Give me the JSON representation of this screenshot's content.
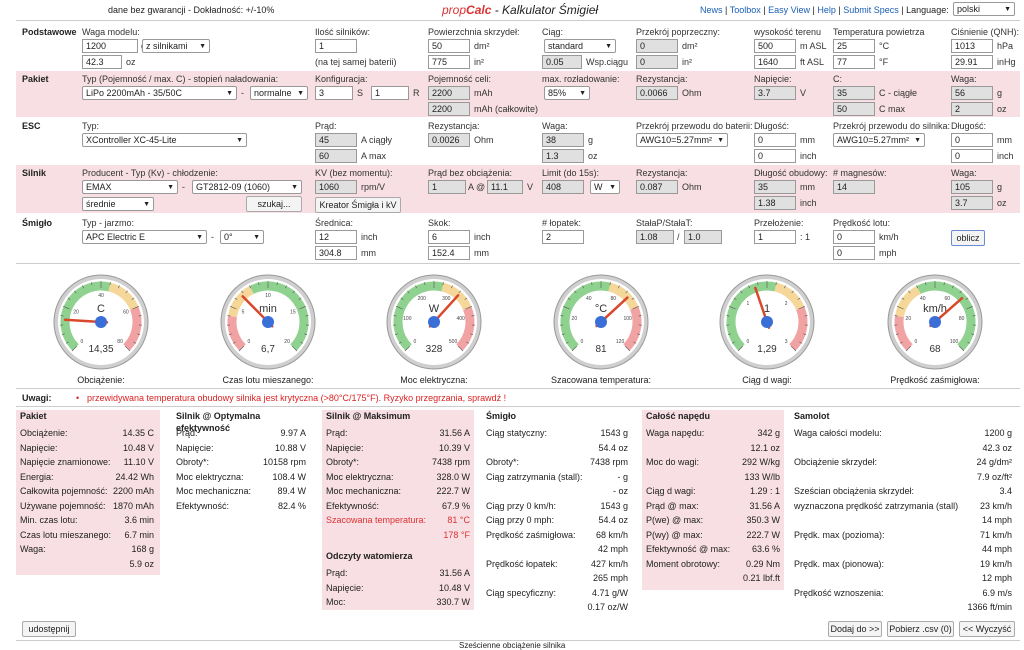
{
  "header": {
    "warranty": "dane bez gwarancji - Dokładność: +/-10%",
    "brand1": "prop",
    "brand2": "Calc",
    "title_rest": " - Kalkulator Śmigieł",
    "links": [
      "News",
      "Toolbox",
      "Easy View",
      "Help",
      "Submit Specs"
    ],
    "sep": "|",
    "lang_label": "Language:",
    "lang_value": "polski"
  },
  "basic": {
    "name": "Podstawowe",
    "weight_label": "Waga modelu:",
    "weight_g": "1200",
    "weight_g_unit": "g",
    "weight_mode": "z silnikami",
    "weight_oz": "42.3",
    "weight_oz_unit": "oz",
    "motors_label": "Ilość silników:",
    "motors": "1",
    "motors_note": "(na tej samej baterii)",
    "wing_label": "Powierzchnia skrzydeł:",
    "wing_dm": "50",
    "wing_dm_unit": "dm²",
    "wing_in": "775",
    "wing_in_unit": "in²",
    "drag_label": "Ciąg:",
    "drag_mode": "standard",
    "drag_coef": "0.05",
    "drag_coef_unit": "Wsp.ciągu",
    "cross_label": "Przekrój poprzeczny:",
    "cross_dm": "0",
    "cross_dm_unit": "dm²",
    "cross_in": "0",
    "cross_in_unit": "in²",
    "alt_label": "wysokość terenu",
    "alt_m": "500",
    "alt_m_unit": "m ASL",
    "alt_ft": "1640",
    "alt_ft_unit": "ft ASL",
    "temp_label": "Temperatura powietrza",
    "temp_c": "25",
    "temp_c_unit": "°C",
    "temp_f": "77",
    "temp_f_unit": "°F",
    "press_label": "Ciśnienie (QNH):",
    "press_hpa": "1013",
    "press_hpa_unit": "hPa",
    "press_inhg": "29.91",
    "press_inhg_unit": "inHg"
  },
  "battery": {
    "name": "Pakiet",
    "type_label": "Typ (Pojemność / max. C) - stopień naładowania:",
    "type": "LiPo 2200mAh - 35/50C",
    "dash": "-",
    "charge": "normalne",
    "config_label": "Konfiguracja:",
    "s": "3",
    "s_unit": "S",
    "p": "1",
    "p_unit": "R",
    "cell_label": "Pojemność celi:",
    "cell_cap": "2200",
    "cell_cap_unit": "mAh",
    "total_cap": "2200",
    "total_cap_unit": "mAh (całkowite)",
    "disch_label": "max. rozładowanie:",
    "disch": "85%",
    "res_label": "Rezystancja:",
    "res": "0.0066",
    "res_unit": "Ohm",
    "volt_label": "Napięcie:",
    "volt": "3.7",
    "volt_unit": "V",
    "c_label": "C:",
    "c_cont": "35",
    "c_cont_unit": "C - ciągłe",
    "c_max": "50",
    "c_max_unit": "C max",
    "w_label": "Waga:",
    "w_g": "56",
    "w_g_unit": "g",
    "w_oz": "2",
    "w_oz_unit": "oz"
  },
  "esc": {
    "name": "ESC",
    "type_label": "Typ:",
    "type": "XController XC-45-Lite",
    "cur_label": "Prąd:",
    "cur_cont": "45",
    "cur_cont_unit": "A ciągły",
    "cur_max": "60",
    "cur_max_unit": "A max",
    "res_label": "Rezystancja:",
    "res": "0.0026",
    "res_unit": "Ohm",
    "w_label": "Waga:",
    "w_g": "38",
    "w_g_unit": "g",
    "w_oz": "1.3",
    "w_oz_unit": "oz",
    "bwire_label": "Przekrój przewodu do baterii:",
    "bwire": "AWG10=5.27mm²",
    "len_label": "Długość:",
    "len_mm": "0",
    "len_mm_unit": "mm",
    "len_in": "0",
    "len_in_unit": "inch",
    "mwire_label": "Przekrój przewodu do silnika:",
    "mwire": "AWG10=5.27mm²",
    "len2_label": "Długość:",
    "len2_mm": "0",
    "len2_mm_unit": "mm",
    "len2_in": "0",
    "len2_in_unit": "inch"
  },
  "motor": {
    "name": "Silnik",
    "maker_label": "Producent - Typ (Kv) - chłodzenie:",
    "maker": "EMAX",
    "dash": "-",
    "model": "GT2812-09 (1060)",
    "cooling": "średnie",
    "search": "szukaj...",
    "kv_label": "KV (bez momentu):",
    "kv": "1060",
    "kv_unit": "rpm/V",
    "wizard": "Kreator Śmigła i kV",
    "i0_label": "Prąd bez obciążenia:",
    "i0": "1",
    "i0_at": "A @",
    "i0_v": "11.1",
    "i0_v_unit": "V",
    "limit_label": "Limit (do 15s):",
    "limit": "408",
    "limit_unit": "W",
    "res_label": "Rezystancja:",
    "res": "0.087",
    "res_unit": "Ohm",
    "case_label": "Długość obudowy:",
    "case_mm": "35",
    "case_mm_unit": "mm",
    "case_in": "1.38",
    "case_in_unit": "inch",
    "mag_label": "# magnesów:",
    "mag": "14",
    "w_label": "Waga:",
    "w_g": "105",
    "w_g_unit": "g",
    "w_oz": "3.7",
    "w_oz_unit": "oz"
  },
  "prop": {
    "name": "Śmigło",
    "type_label": "Typ - jarzmo:",
    "type": "APC Electric E",
    "dash": "-",
    "yoke": "0°",
    "dia_label": "Średnica:",
    "dia_in": "12",
    "dia_in_unit": "inch",
    "dia_mm": "304.8",
    "dia_mm_unit": "mm",
    "pitch_label": "Skok:",
    "pitch_in": "6",
    "pitch_in_unit": "inch",
    "pitch_mm": "152.4",
    "pitch_mm_unit": "mm",
    "blades_label": "# łopatek:",
    "blades": "2",
    "const_label": "StałaP/StałaT:",
    "const_p": "1.08",
    "const_slash": "/",
    "const_t": "1.0",
    "gear_label": "Przełożenie:",
    "gear": "1",
    "gear_unit": ": 1",
    "speed_label": "Prędkość lotu:",
    "speed_kmh": "0",
    "speed_kmh_unit": "km/h",
    "speed_mph": "0",
    "speed_mph_unit": "mph",
    "calc": "oblicz"
  },
  "gauges": [
    {
      "caption": "Obciążenie:",
      "unit": "C",
      "value": "14,35",
      "ticks": [
        "0",
        "20",
        "40",
        "60",
        "80"
      ],
      "level": 0.18
    },
    {
      "caption": "Czas lotu mieszanego:",
      "unit": "min",
      "value": "6,7",
      "ticks": [
        "0",
        "5",
        "10",
        "15",
        "20"
      ],
      "level": 0.335
    },
    {
      "caption": "Moc elektryczna:",
      "unit": "W",
      "value": "328",
      "ticks": [
        "0",
        "100",
        "200",
        "300",
        "400",
        "500"
      ],
      "level": 0.656
    },
    {
      "caption": "Szacowana temperatura:",
      "unit": "°C",
      "value": "81",
      "ticks": [
        "0",
        "20",
        "40",
        "80",
        "100",
        "120"
      ],
      "level": 0.675
    },
    {
      "caption": "Ciąg d wagi:",
      "unit": "1",
      "value": "1,29",
      "ticks": [
        "0",
        "1",
        "2",
        "3"
      ],
      "level": 0.43
    },
    {
      "caption": "Prędkość zaśmigłowa:",
      "unit": "km/h",
      "value": "68",
      "ticks": [
        "0",
        "20",
        "40",
        "60",
        "80",
        "100"
      ],
      "level": 0.68
    }
  ],
  "notes": {
    "label": "Uwagi:",
    "bullet": "•",
    "text": "przewidywana temperatura obudowy silnika jest krytyczna (>80°C/175°F). Ryzyko przegrzania, sprawdź !"
  },
  "results": {
    "pakiet": {
      "title": "Pakiet",
      "rows": [
        [
          "Obciążenie:",
          "14.35 C"
        ],
        [
          "Napięcie:",
          "10.48 V"
        ],
        [
          "Napięcie znamionowe:",
          "11.10 V"
        ],
        [
          "Energia:",
          "24.42 Wh"
        ],
        [
          "Całkowita pojemność:",
          "2200 mAh"
        ],
        [
          "Używane pojemność:",
          "1870 mAh"
        ],
        [
          "Min. czas lotu:",
          "3.6 min"
        ],
        [
          "Czas lotu mieszanego:",
          "6.7 min"
        ],
        [
          "Waga:",
          "168 g"
        ],
        [
          "",
          "5.9 oz"
        ]
      ]
    },
    "opt": {
      "title": "Silnik @ Optymalna efektywność",
      "rows": [
        [
          "Prąd:",
          "9.97 A"
        ],
        [
          "Napięcie:",
          "10.88 V"
        ],
        [
          "Obroty*:",
          "10158 rpm"
        ],
        [
          "Moc elektryczna:",
          "108.4 W"
        ],
        [
          "Moc mechaniczna:",
          "89.4 W"
        ],
        [
          "Efektywność:",
          "82.4 %"
        ]
      ]
    },
    "max": {
      "title": "Silnik @ Maksimum",
      "rows": [
        [
          "Prąd:",
          "31.56 A"
        ],
        [
          "Napięcie:",
          "10.39 V"
        ],
        [
          "Obroty*:",
          "7438 rpm"
        ],
        [
          "Moc elektryczna:",
          "328.0 W"
        ],
        [
          "Moc mechaniczna:",
          "222.7 W"
        ],
        [
          "Efektywność:",
          "67.9 %"
        ],
        [
          "Szacowana temperatura:",
          "81 °C"
        ],
        [
          "",
          "178 °F"
        ]
      ],
      "watt_title": "Odczyty watomierza",
      "watt_rows": [
        [
          "Prąd:",
          "31.56 A"
        ],
        [
          "Napięcie:",
          "10.48 V"
        ],
        [
          "Moc:",
          "330.7 W"
        ]
      ]
    },
    "prop": {
      "title": "Śmigło",
      "rows": [
        [
          "Ciąg statyczny:",
          "1543 g"
        ],
        [
          "",
          "54.4 oz"
        ],
        [
          "Obroty*:",
          "7438 rpm"
        ],
        [
          "Ciąg zatrzymania (stall):",
          "- g"
        ],
        [
          "",
          "- oz"
        ],
        [
          "Ciąg przy 0 km/h:",
          "1543 g"
        ],
        [
          "Ciąg przy 0 mph:",
          "54.4 oz"
        ],
        [
          "Prędkość zaśmigłowa:",
          "68 km/h"
        ],
        [
          "",
          "42 mph"
        ],
        [
          "Prędkość łopatek:",
          "427 km/h"
        ],
        [
          "",
          "265 mph"
        ],
        [
          "Ciąg specyficzny:",
          "4.71 g/W"
        ],
        [
          "",
          "0.17 oz/W"
        ]
      ]
    },
    "drive": {
      "title": "Całość napędu",
      "rows": [
        [
          "Waga napędu:",
          "342 g"
        ],
        [
          "",
          "12.1 oz"
        ],
        [
          "Moc do wagi:",
          "292 W/kg"
        ],
        [
          "",
          "133 W/lb"
        ],
        [
          "Ciąg d wagi:",
          "1.29 : 1"
        ],
        [
          "Prąd @ max:",
          "31.56 A"
        ],
        [
          "P(we) @ max:",
          "350.3 W"
        ],
        [
          "P(wy) @ max:",
          "222.7 W"
        ],
        [
          "Efektywność @ max:",
          "63.6 %"
        ],
        [
          "Moment obrotowy:",
          "0.29 Nm"
        ],
        [
          "",
          "0.21 lbf.ft"
        ]
      ]
    },
    "plane": {
      "title": "Samolot",
      "rows": [
        [
          "Waga całości modelu:",
          "1200 g"
        ],
        [
          "",
          "42.3 oz"
        ],
        [
          "Obciążenie skrzydeł:",
          "24 g/dm²"
        ],
        [
          "",
          "7.9 oz/ft²"
        ],
        [
          "Sześcian obciążenia skrzydeł:",
          "3.4"
        ],
        [
          "wyznaczona prędkość zatrzymania (stall)",
          "23 km/h"
        ],
        [
          "",
          "14 mph"
        ],
        [
          "Prędk. max (pozioma):",
          "71 km/h"
        ],
        [
          "",
          "44 mph"
        ],
        [
          "Prędk. max (pionowa):",
          "19 km/h"
        ],
        [
          "",
          "12 mph"
        ],
        [
          "Prędkość wznoszenia:",
          "6.9 m/s"
        ],
        [
          "",
          "1366 ft/min"
        ]
      ]
    }
  },
  "bottom": {
    "share": "udostępnij",
    "add": "Dodaj do >>",
    "csv": "Pobierz .csv (0)",
    "clear": "<< Wyczyść",
    "footer": "Sześcienne obciążenie silnika"
  }
}
